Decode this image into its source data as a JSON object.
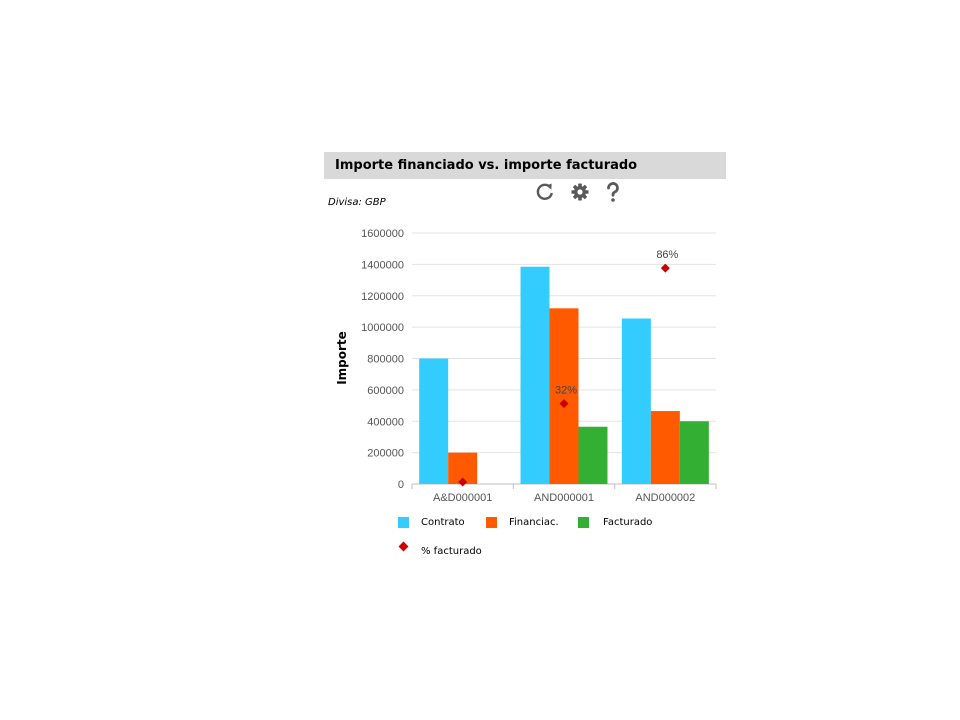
{
  "panel": {
    "title": "Importe financiado vs. importe facturado",
    "currency_label": "Divisa: GBP"
  },
  "toolbar": {
    "refresh_icon": "refresh-icon",
    "settings_icon": "gear-icon",
    "help_icon": "help-icon"
  },
  "chart_data": {
    "type": "bar",
    "title": "",
    "xlabel": "",
    "ylabel": "Importe",
    "categories": [
      "A&D000001",
      "AND000001",
      "AND000002"
    ],
    "ylim": [
      0,
      1600000
    ],
    "yticks": [
      0,
      200000,
      400000,
      600000,
      800000,
      1000000,
      1200000,
      1400000,
      1600000
    ],
    "grid": true,
    "legend_position": "bottom",
    "series": [
      {
        "name": "Contrato",
        "color": "#33ccff",
        "values": [
          800000,
          1385000,
          1055000
        ]
      },
      {
        "name": "Financiac.",
        "color": "#ff5a00",
        "values": [
          200000,
          1120000,
          465000
        ]
      },
      {
        "name": "Facturado",
        "color": "#33b033",
        "values": [
          0,
          365000,
          400000
        ]
      }
    ],
    "markers": {
      "name": "% facturado",
      "color": "#cc0000",
      "values": [
        0,
        32,
        86
      ],
      "labels": [
        "",
        "32%",
        "86%"
      ]
    }
  }
}
